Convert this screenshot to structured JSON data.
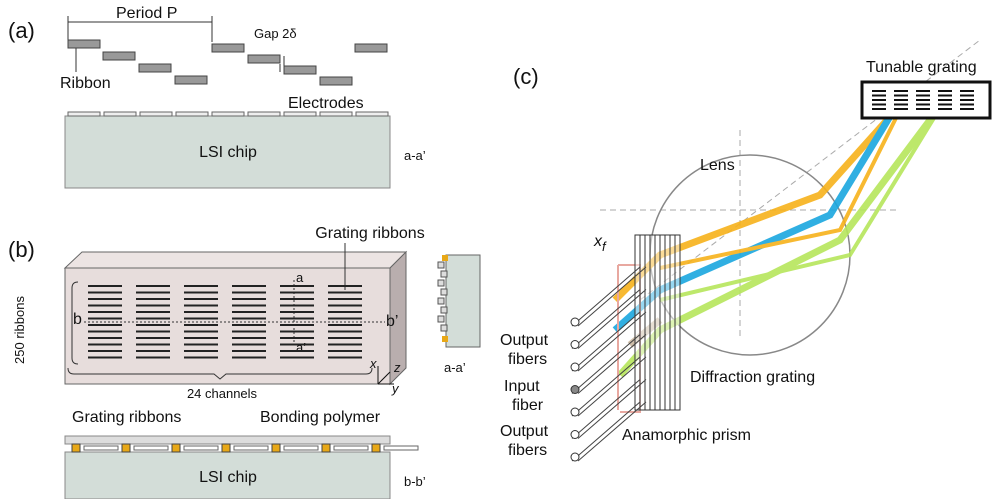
{
  "panel_a": {
    "label": "(a)",
    "period": "Period P",
    "gap": "Gap 2δ",
    "ribbon": "Ribbon",
    "electrodes": "Electrodes",
    "chip": "LSI chip",
    "section": "a-a’"
  },
  "panel_b": {
    "label": "(b)",
    "grating_ribbons": "Grating ribbons",
    "ribbon_count": "250 ribbons",
    "b_left": "b",
    "b_right": "b’",
    "a_top": "a",
    "a_bottom": "a’",
    "channels": "24 channels",
    "axis_x": "x",
    "axis_y": "y",
    "axis_z": "z",
    "side_section": "a-a’",
    "bottom_ribbons": "Grating ribbons",
    "bonding": "Bonding polymer",
    "chip": "LSI chip",
    "bottom_section": "b-b’"
  },
  "panel_c": {
    "label": "(c)",
    "tunable": "Tunable grating",
    "lens": "Lens",
    "xf": {
      "symbol": "x",
      "subscript": "f"
    },
    "output_top": [
      "Output",
      "fibers"
    ],
    "input": [
      "Input",
      "fiber"
    ],
    "output_bottom": [
      "Output",
      "fibers"
    ],
    "diffraction": "Diffraction grating",
    "prism": "Anamorphic prism"
  }
}
